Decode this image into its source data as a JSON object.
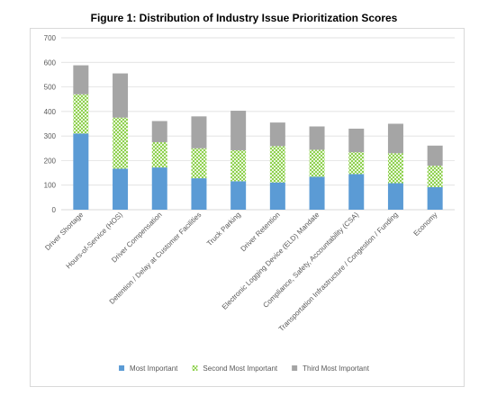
{
  "chart_data": {
    "type": "bar",
    "stacked": true,
    "title": "Figure 1: Distribution of Industry Issue Prioritization Scores",
    "xlabel": "",
    "ylabel": "",
    "ylim": [
      0,
      700
    ],
    "yticks": [
      0,
      100,
      200,
      300,
      400,
      500,
      600,
      700
    ],
    "grid": true,
    "legend_position": "bottom",
    "categories": [
      "Driver Shortage",
      "Hours-of-Service (HOS)",
      "Driver Compensation",
      "Detention / Delay at Customer Facilities",
      "Truck Parking",
      "Driver Retention",
      "Electronic Logging Device (ELD) Mandate",
      "Compliance, Safety, Accountability (CSA)",
      "Transportation Infrastructure / Congestion / Funding",
      "Economy"
    ],
    "series": [
      {
        "name": "Most Important",
        "color": "#5b9bd5",
        "values": [
          310,
          167,
          172,
          128,
          116,
          111,
          134,
          145,
          108,
          92
        ]
      },
      {
        "name": "Second Most Important",
        "color": "#b4e08a",
        "values": [
          160,
          208,
          103,
          122,
          126,
          148,
          110,
          89,
          122,
          87
        ]
      },
      {
        "name": "Third Most Important",
        "color": "#a5a5a5",
        "values": [
          118,
          180,
          86,
          130,
          161,
          96,
          95,
          96,
          120,
          82
        ]
      }
    ]
  }
}
